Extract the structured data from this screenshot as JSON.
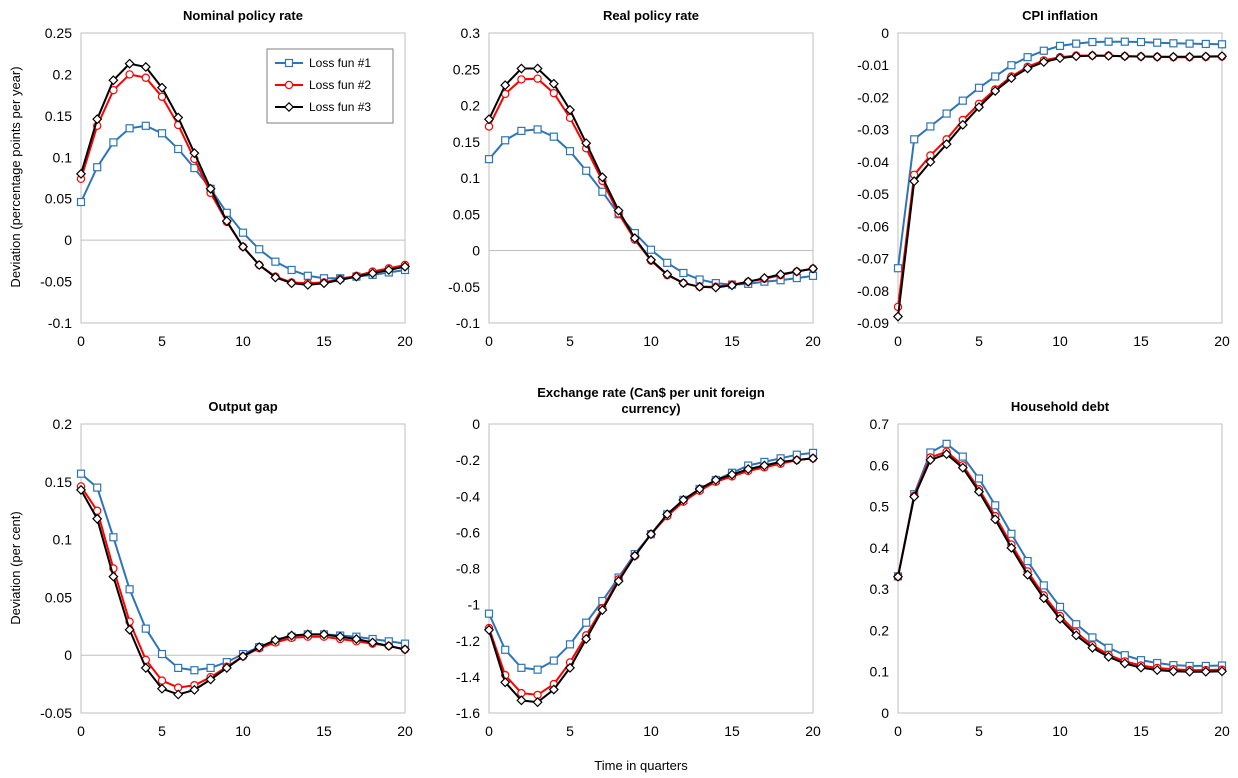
{
  "figure": {
    "x_label": "Time in quarters",
    "y_labels": [
      "Deviation (percentage points per year)",
      "Deviation (per cent)"
    ]
  },
  "series_style": [
    {
      "color": "#2E75B6",
      "marker": "square"
    },
    {
      "color": "#FF0000",
      "marker": "circle"
    },
    {
      "color": "#000000",
      "marker": "diamond"
    }
  ],
  "chart_data": [
    {
      "type": "line",
      "title": [
        "Nominal policy rate"
      ],
      "ylim": [
        -0.1,
        0.25
      ],
      "yticks": [
        "0.25",
        "0.2",
        "0.15",
        "0.1",
        "0.05",
        "0",
        "-0.05",
        "-0.1"
      ],
      "xticks": [
        "0",
        "5",
        "10",
        "15",
        "20"
      ],
      "legend_position": "top-right",
      "x": [
        0,
        1,
        2,
        3,
        4,
        5,
        6,
        7,
        8,
        9,
        10,
        11,
        12,
        13,
        14,
        15,
        16,
        17,
        18,
        19,
        20
      ],
      "series": [
        {
          "name": "Loss fun #1",
          "values": [
            0.046,
            0.088,
            0.118,
            0.135,
            0.138,
            0.129,
            0.11,
            0.087,
            0.062,
            0.033,
            0.009,
            -0.011,
            -0.026,
            -0.036,
            -0.043,
            -0.046,
            -0.046,
            -0.044,
            -0.042,
            -0.039,
            -0.036
          ]
        },
        {
          "name": "Loss fun #2",
          "values": [
            0.074,
            0.138,
            0.181,
            0.2,
            0.196,
            0.173,
            0.139,
            0.098,
            0.057,
            0.022,
            -0.008,
            -0.03,
            -0.044,
            -0.051,
            -0.052,
            -0.051,
            -0.047,
            -0.043,
            -0.038,
            -0.034,
            -0.03
          ]
        },
        {
          "name": "Loss fun #3",
          "values": [
            0.08,
            0.146,
            0.193,
            0.213,
            0.209,
            0.184,
            0.148,
            0.105,
            0.062,
            0.023,
            -0.008,
            -0.03,
            -0.045,
            -0.052,
            -0.054,
            -0.052,
            -0.048,
            -0.044,
            -0.04,
            -0.036,
            -0.032
          ]
        }
      ]
    },
    {
      "type": "line",
      "title": [
        "Real policy rate"
      ],
      "ylim": [
        -0.1,
        0.3
      ],
      "yticks": [
        "0.3",
        "0.25",
        "0.2",
        "0.15",
        "0.1",
        "0.05",
        "0",
        "-0.05",
        "-0.1"
      ],
      "xticks": [
        "0",
        "5",
        "10",
        "15",
        "20"
      ],
      "x": [
        0,
        1,
        2,
        3,
        4,
        5,
        6,
        7,
        8,
        9,
        10,
        11,
        12,
        13,
        14,
        15,
        16,
        17,
        18,
        19,
        20
      ],
      "series": [
        {
          "name": "Loss fun #1",
          "values": [
            0.126,
            0.152,
            0.165,
            0.167,
            0.157,
            0.137,
            0.11,
            0.081,
            0.05,
            0.024,
            0.001,
            -0.017,
            -0.031,
            -0.04,
            -0.045,
            -0.047,
            -0.046,
            -0.043,
            -0.041,
            -0.038,
            -0.035
          ]
        },
        {
          "name": "Loss fun #2",
          "values": [
            0.171,
            0.216,
            0.236,
            0.237,
            0.217,
            0.183,
            0.141,
            0.096,
            0.051,
            0.015,
            -0.014,
            -0.034,
            -0.045,
            -0.05,
            -0.05,
            -0.047,
            -0.043,
            -0.039,
            -0.034,
            -0.029,
            -0.025
          ]
        },
        {
          "name": "Loss fun #3",
          "values": [
            0.181,
            0.228,
            0.251,
            0.251,
            0.23,
            0.194,
            0.148,
            0.101,
            0.055,
            0.017,
            -0.013,
            -0.033,
            -0.045,
            -0.05,
            -0.051,
            -0.048,
            -0.043,
            -0.038,
            -0.033,
            -0.029,
            -0.025
          ]
        }
      ]
    },
    {
      "type": "line",
      "title": [
        "CPI inflation"
      ],
      "ylim": [
        -0.09,
        0
      ],
      "yticks": [
        "0",
        "-0.01",
        "-0.02",
        "-0.03",
        "-0.04",
        "-0.05",
        "-0.06",
        "-0.07",
        "-0.08",
        "-0.09"
      ],
      "xticks": [
        "0",
        "5",
        "10",
        "15",
        "20"
      ],
      "x": [
        0,
        1,
        2,
        3,
        4,
        5,
        6,
        7,
        8,
        9,
        10,
        11,
        12,
        13,
        14,
        15,
        16,
        17,
        18,
        19,
        20
      ],
      "series": [
        {
          "name": "Loss fun #1",
          "values": [
            -0.073,
            -0.033,
            -0.029,
            -0.025,
            -0.021,
            -0.017,
            -0.0135,
            -0.01,
            -0.0075,
            -0.0055,
            -0.004,
            -0.0033,
            -0.0028,
            -0.0027,
            -0.0027,
            -0.0028,
            -0.003,
            -0.0032,
            -0.0033,
            -0.0034,
            -0.0035
          ]
        },
        {
          "name": "Loss fun #2",
          "values": [
            -0.085,
            -0.044,
            -0.038,
            -0.033,
            -0.027,
            -0.022,
            -0.0175,
            -0.0135,
            -0.0105,
            -0.0085,
            -0.0075,
            -0.007,
            -0.007,
            -0.007,
            -0.0072,
            -0.0073,
            -0.0074,
            -0.0075,
            -0.0075,
            -0.0074,
            -0.0073
          ]
        },
        {
          "name": "Loss fun #3",
          "values": [
            -0.088,
            -0.046,
            -0.04,
            -0.0345,
            -0.0285,
            -0.023,
            -0.018,
            -0.014,
            -0.011,
            -0.009,
            -0.0078,
            -0.0072,
            -0.007,
            -0.0071,
            -0.0072,
            -0.0073,
            -0.0074,
            -0.0074,
            -0.0074,
            -0.0073,
            -0.0072
          ]
        }
      ]
    },
    {
      "type": "line",
      "title": [
        "Output gap"
      ],
      "ylim": [
        -0.05,
        0.2
      ],
      "yticks": [
        "0.2",
        "0.15",
        "0.1",
        "0.05",
        "0",
        "-0.05"
      ],
      "xticks": [
        "0",
        "5",
        "10",
        "15",
        "20"
      ],
      "x": [
        0,
        1,
        2,
        3,
        4,
        5,
        6,
        7,
        8,
        9,
        10,
        11,
        12,
        13,
        14,
        15,
        16,
        17,
        18,
        19,
        20
      ],
      "series": [
        {
          "name": "Loss fun #1",
          "values": [
            0.157,
            0.145,
            0.102,
            0.057,
            0.023,
            0.001,
            -0.011,
            -0.013,
            -0.011,
            -0.006,
            0.001,
            0.007,
            0.012,
            0.016,
            0.018,
            0.018,
            0.017,
            0.016,
            0.014,
            0.012,
            0.01
          ]
        },
        {
          "name": "Loss fun #2",
          "values": [
            0.146,
            0.125,
            0.075,
            0.029,
            -0.004,
            -0.022,
            -0.028,
            -0.026,
            -0.019,
            -0.01,
            -0.001,
            0.006,
            0.011,
            0.015,
            0.016,
            0.016,
            0.014,
            0.012,
            0.01,
            0.008,
            0.005
          ]
        },
        {
          "name": "Loss fun #3",
          "values": [
            0.143,
            0.118,
            0.068,
            0.022,
            -0.011,
            -0.029,
            -0.034,
            -0.03,
            -0.021,
            -0.011,
            -0.001,
            0.007,
            0.013,
            0.017,
            0.018,
            0.018,
            0.016,
            0.014,
            0.011,
            0.008,
            0.005
          ]
        }
      ]
    },
    {
      "type": "line",
      "title": [
        "Exchange rate (Can$ per unit foreign",
        "currency)"
      ],
      "ylim": [
        -1.6,
        0
      ],
      "yticks": [
        "0",
        "-0.2",
        "-0.4",
        "-0.6",
        "-0.8",
        "-1",
        "-1.2",
        "-1.4",
        "-1.6"
      ],
      "xticks": [
        "0",
        "5",
        "10",
        "15",
        "20"
      ],
      "x": [
        0,
        1,
        2,
        3,
        4,
        5,
        6,
        7,
        8,
        9,
        10,
        11,
        12,
        13,
        14,
        15,
        16,
        17,
        18,
        19,
        20
      ],
      "series": [
        {
          "name": "Loss fun #1",
          "values": [
            -1.05,
            -1.25,
            -1.35,
            -1.36,
            -1.31,
            -1.22,
            -1.1,
            -0.98,
            -0.85,
            -0.72,
            -0.61,
            -0.5,
            -0.42,
            -0.36,
            -0.31,
            -0.27,
            -0.23,
            -0.21,
            -0.19,
            -0.17,
            -0.16
          ]
        },
        {
          "name": "Loss fun #2",
          "values": [
            -1.13,
            -1.39,
            -1.49,
            -1.5,
            -1.44,
            -1.32,
            -1.17,
            -1.02,
            -0.86,
            -0.73,
            -0.61,
            -0.51,
            -0.43,
            -0.37,
            -0.32,
            -0.29,
            -0.26,
            -0.24,
            -0.22,
            -0.2,
            -0.19
          ]
        },
        {
          "name": "Loss fun #3",
          "values": [
            -1.14,
            -1.43,
            -1.53,
            -1.54,
            -1.47,
            -1.35,
            -1.19,
            -1.03,
            -0.87,
            -0.73,
            -0.61,
            -0.5,
            -0.42,
            -0.36,
            -0.31,
            -0.28,
            -0.25,
            -0.23,
            -0.21,
            -0.2,
            -0.19
          ]
        }
      ]
    },
    {
      "type": "line",
      "title": [
        "Household debt"
      ],
      "ylim": [
        0,
        0.7
      ],
      "yticks": [
        "0.7",
        "0.6",
        "0.5",
        "0.4",
        "0.3",
        "0.2",
        "0.1",
        "0"
      ],
      "xticks": [
        "0",
        "5",
        "10",
        "15",
        "20"
      ],
      "x": [
        0,
        1,
        2,
        3,
        4,
        5,
        6,
        7,
        8,
        9,
        10,
        11,
        12,
        13,
        14,
        15,
        16,
        17,
        18,
        19,
        20
      ],
      "series": [
        {
          "name": "Loss fun #1",
          "values": [
            0.331,
            0.53,
            0.631,
            0.652,
            0.621,
            0.568,
            0.503,
            0.434,
            0.368,
            0.309,
            0.257,
            0.215,
            0.183,
            0.158,
            0.14,
            0.128,
            0.121,
            0.116,
            0.114,
            0.114,
            0.115
          ]
        },
        {
          "name": "Loss fun #2",
          "values": [
            0.33,
            0.526,
            0.619,
            0.633,
            0.6,
            0.542,
            0.477,
            0.408,
            0.343,
            0.285,
            0.235,
            0.195,
            0.164,
            0.141,
            0.125,
            0.115,
            0.109,
            0.106,
            0.104,
            0.104,
            0.105
          ]
        },
        {
          "name": "Loss fun #3",
          "values": [
            0.33,
            0.524,
            0.613,
            0.627,
            0.594,
            0.536,
            0.469,
            0.4,
            0.335,
            0.278,
            0.228,
            0.188,
            0.158,
            0.136,
            0.12,
            0.11,
            0.104,
            0.101,
            0.1,
            0.1,
            0.101
          ]
        }
      ]
    }
  ]
}
